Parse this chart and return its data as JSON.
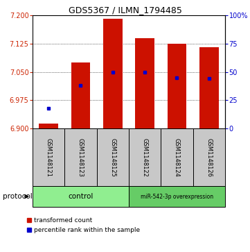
{
  "title": "GDS5367 / ILMN_1794485",
  "samples": [
    "GSM1148121",
    "GSM1148123",
    "GSM1148125",
    "GSM1148122",
    "GSM1148124",
    "GSM1148126"
  ],
  "red_values": [
    6.912,
    7.075,
    7.19,
    7.14,
    7.125,
    7.115
  ],
  "blue_values_pct": [
    18,
    38,
    50,
    50,
    45,
    44
  ],
  "ymin": 6.9,
  "ymax": 7.2,
  "yticks": [
    6.9,
    6.975,
    7.05,
    7.125,
    7.2
  ],
  "right_yticks": [
    0,
    25,
    50,
    75,
    100
  ],
  "bar_color": "#CC1100",
  "dot_color": "#0000CC",
  "baseline": 6.9,
  "legend_items": [
    {
      "label": "transformed count",
      "color": "#CC1100"
    },
    {
      "label": "percentile rank within the sample",
      "color": "#0000CC"
    }
  ],
  "ctrl_color": "#90EE90",
  "mir_color": "#66CC66",
  "gray_color": "#C8C8C8"
}
